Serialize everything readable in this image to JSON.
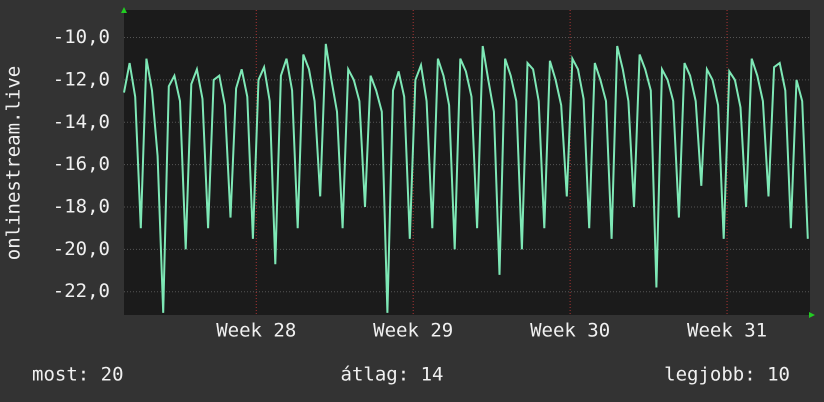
{
  "chart_data": {
    "type": "line",
    "y_label": "onlinestream.live",
    "x": [
      0,
      0.25,
      0.5,
      0.75,
      1,
      1.25,
      1.5,
      1.75,
      2,
      2.25,
      2.5,
      2.75,
      3,
      3.25,
      3.5,
      3.75,
      4,
      4.25,
      4.5,
      4.75,
      5,
      5.25,
      5.5,
      5.75,
      6,
      6.25,
      6.5,
      6.75,
      7,
      7.25,
      7.5,
      7.75,
      8,
      8.25,
      8.5,
      8.75,
      9,
      9.25,
      9.5,
      9.75,
      10,
      10.25,
      10.5,
      10.75,
      11,
      11.25,
      11.5,
      11.75,
      12,
      12.25,
      12.5,
      12.75,
      13,
      13.25,
      13.5,
      13.75,
      14,
      14.25,
      14.5,
      14.75,
      15,
      15.25,
      15.5,
      15.75,
      16,
      16.25,
      16.5,
      16.75,
      17,
      17.25,
      17.5,
      17.75,
      18,
      18.25,
      18.5,
      18.75,
      19,
      19.25,
      19.5,
      19.75,
      20,
      20.25,
      20.5,
      20.75,
      21,
      21.25,
      21.5,
      21.75,
      22,
      22.25,
      22.5,
      22.75,
      23,
      23.25,
      23.5,
      23.75,
      24,
      24.25,
      24.5,
      24.75,
      25,
      25.25,
      25.5,
      25.75,
      26,
      26.25,
      26.5,
      26.75,
      27,
      27.25,
      27.5,
      27.75,
      28,
      28.25,
      28.5,
      28.75,
      29,
      29.25,
      29.5,
      29.75,
      30,
      30.25,
      30.5
    ],
    "series": [
      {
        "color": "#7ee8b6",
        "values": [
          -12.6,
          -11.2,
          -12.8,
          -19,
          -11,
          -12.5,
          -15.6,
          -23,
          -12.3,
          -11.8,
          -13,
          -20,
          -12.2,
          -11.5,
          -12.9,
          -19,
          -12,
          -11.8,
          -13.2,
          -18.5,
          -12.4,
          -11.5,
          -12.8,
          -19.5,
          -12,
          -11.4,
          -13,
          -20.7,
          -11.8,
          -11,
          -12.5,
          -19,
          -10.8,
          -11.5,
          -13,
          -17.5,
          -10.3,
          -12,
          -13.5,
          -19,
          -11.5,
          -12,
          -13,
          -18,
          -11.8,
          -12.5,
          -13.5,
          -23,
          -12.5,
          -11.6,
          -12.8,
          -19.5,
          -12,
          -11.3,
          -13,
          -19,
          -11,
          -11.8,
          -13.2,
          -20,
          -11,
          -11.6,
          -12.8,
          -19,
          -10.4,
          -12,
          -13.5,
          -21.2,
          -11,
          -11.8,
          -13,
          -20,
          -11.2,
          -11.5,
          -13,
          -19,
          -11.1,
          -12,
          -13.2,
          -17.5,
          -11,
          -11.5,
          -12.9,
          -19,
          -11.2,
          -12,
          -13,
          -19.5,
          -10.4,
          -11.5,
          -13,
          -18,
          -10.8,
          -11.5,
          -12.5,
          -21.8,
          -11.5,
          -12,
          -13,
          -18.5,
          -11.2,
          -11.8,
          -13,
          -17,
          -11.5,
          -12,
          -13.2,
          -19.5,
          -11.6,
          -12,
          -13.3,
          -18,
          -11,
          -11.8,
          -13,
          -17.5,
          -11.4,
          -11.2,
          -12.5,
          -19,
          -12,
          -13,
          -19.5
        ]
      }
    ],
    "xlim": [
      0,
      30.6
    ],
    "xticks": [
      {
        "value": 5.9,
        "label": "Week 28"
      },
      {
        "value": 12.9,
        "label": "Week 29"
      },
      {
        "value": 19.9,
        "label": "Week 30"
      },
      {
        "value": 26.9,
        "label": "Week 31"
      }
    ],
    "ylim": [
      -23.1,
      -8.7
    ],
    "yticks": [
      {
        "value": -22,
        "label": "-22,0"
      },
      {
        "value": -20,
        "label": "-20,0"
      },
      {
        "value": -18,
        "label": "-18,0"
      },
      {
        "value": -16,
        "label": "-16,0"
      },
      {
        "value": -14,
        "label": "-14,0"
      },
      {
        "value": -12,
        "label": "-12,0"
      },
      {
        "value": -10,
        "label": "-10,0"
      }
    ],
    "grid": true,
    "legend_items": [
      "most: 20",
      "átlag: 14",
      "legjobb: 10"
    ]
  }
}
